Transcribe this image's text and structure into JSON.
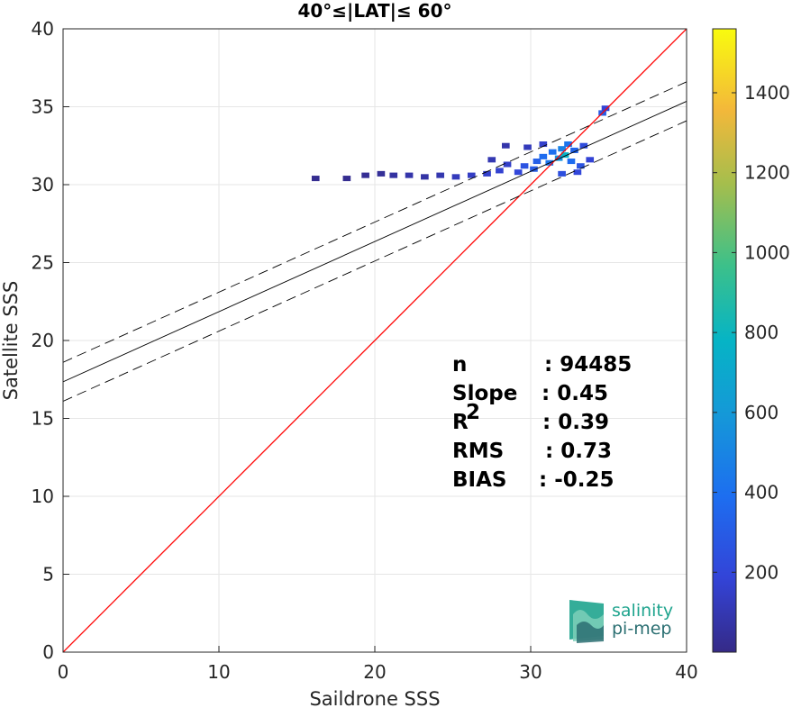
{
  "chart_data": {
    "type": "heatmap",
    "title": "40°≤|LAT|≤ 60°",
    "xlabel": "Saildrone SSS",
    "ylabel": "Satellite SSS",
    "xlim": [
      0,
      40
    ],
    "ylim": [
      0,
      40
    ],
    "xticks": [
      "0",
      "10",
      "20",
      "30",
      "40"
    ],
    "yticks": [
      "0",
      "5",
      "10",
      "15",
      "20",
      "25",
      "30",
      "35",
      "40"
    ],
    "grid": true,
    "colorbar": {
      "range": [
        0,
        1560
      ],
      "ticks": [
        "200",
        "400",
        "600",
        "800",
        "1000",
        "1200",
        "1400"
      ],
      "colormap": "parula"
    },
    "identity_line": {
      "x": [
        0,
        40
      ],
      "y": [
        0,
        40
      ],
      "color": "#ff0000"
    },
    "fit_line": {
      "slope": 0.45,
      "intercept": 17.35,
      "x": [
        0,
        40
      ],
      "color": "#000000"
    },
    "fit_band_upper": {
      "slope": 0.45,
      "intercept": 18.6,
      "x": [
        0,
        40
      ]
    },
    "fit_band_lower": {
      "slope": 0.45,
      "intercept": 16.1,
      "x": [
        0,
        40
      ]
    },
    "density_cells": [
      {
        "x": 16.2,
        "y": 30.4,
        "count": 20
      },
      {
        "x": 18.2,
        "y": 30.4,
        "count": 20
      },
      {
        "x": 19.4,
        "y": 30.6,
        "count": 30
      },
      {
        "x": 20.4,
        "y": 30.7,
        "count": 40
      },
      {
        "x": 21.2,
        "y": 30.6,
        "count": 60
      },
      {
        "x": 22.2,
        "y": 30.6,
        "count": 80
      },
      {
        "x": 23.2,
        "y": 30.5,
        "count": 70
      },
      {
        "x": 24.2,
        "y": 30.6,
        "count": 90
      },
      {
        "x": 25.2,
        "y": 30.5,
        "count": 120
      },
      {
        "x": 26.2,
        "y": 30.6,
        "count": 140
      },
      {
        "x": 27.2,
        "y": 30.7,
        "count": 160
      },
      {
        "x": 28.0,
        "y": 30.9,
        "count": 170
      },
      {
        "x": 28.5,
        "y": 31.3,
        "count": 150
      },
      {
        "x": 27.5,
        "y": 31.6,
        "count": 100
      },
      {
        "x": 28.4,
        "y": 32.5,
        "count": 80
      },
      {
        "x": 29.2,
        "y": 30.8,
        "count": 200
      },
      {
        "x": 29.6,
        "y": 31.2,
        "count": 260
      },
      {
        "x": 30.2,
        "y": 31.0,
        "count": 300
      },
      {
        "x": 30.4,
        "y": 31.5,
        "count": 320
      },
      {
        "x": 30.8,
        "y": 31.8,
        "count": 380
      },
      {
        "x": 31.2,
        "y": 31.4,
        "count": 420
      },
      {
        "x": 31.4,
        "y": 32.1,
        "count": 400
      },
      {
        "x": 31.8,
        "y": 31.7,
        "count": 560
      },
      {
        "x": 32.0,
        "y": 32.3,
        "count": 480
      },
      {
        "x": 32.2,
        "y": 31.9,
        "count": 760
      },
      {
        "x": 32.4,
        "y": 32.6,
        "count": 420
      },
      {
        "x": 32.6,
        "y": 31.5,
        "count": 380
      },
      {
        "x": 32.8,
        "y": 32.2,
        "count": 340
      },
      {
        "x": 33.2,
        "y": 31.2,
        "count": 260
      },
      {
        "x": 33.4,
        "y": 32.5,
        "count": 220
      },
      {
        "x": 33.8,
        "y": 31.6,
        "count": 180
      },
      {
        "x": 32.0,
        "y": 30.7,
        "count": 240
      },
      {
        "x": 33.0,
        "y": 30.8,
        "count": 200
      },
      {
        "x": 30.8,
        "y": 32.6,
        "count": 160
      },
      {
        "x": 29.8,
        "y": 32.4,
        "count": 120
      },
      {
        "x": 34.6,
        "y": 34.6,
        "count": 300
      },
      {
        "x": 34.8,
        "y": 34.9,
        "count": 180
      }
    ],
    "stats": [
      {
        "label": "n",
        "value": ": 94485"
      },
      {
        "label": "Slope",
        "value": ": 0.45"
      },
      {
        "label": "R",
        "sup": "2",
        "value": ": 0.39"
      },
      {
        "label": "RMS",
        "value": ": 0.73"
      },
      {
        "label": "BIAS",
        "value": ": -0.25"
      }
    ]
  },
  "logo": {
    "line1": "salinity",
    "line2": "pi-mep",
    "colors": [
      "#1fa48e",
      "#7ccfb8",
      "#2b6f72"
    ]
  }
}
